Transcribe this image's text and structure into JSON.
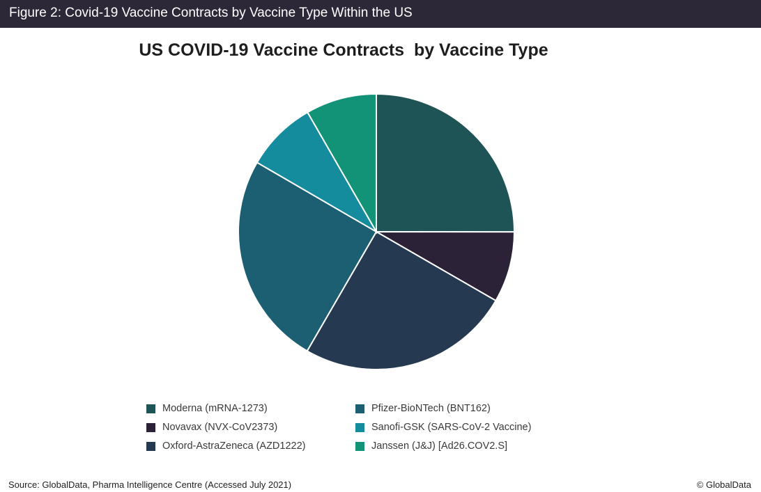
{
  "header": {
    "title": "Figure 2: Covid-19 Vaccine Contracts by Vaccine Type Within the US"
  },
  "footer": {
    "source": "Source: GlobalData, Pharma Intelligence Centre (Accessed July 2021)",
    "copyright": "© GlobalData"
  },
  "chart_data": {
    "type": "pie",
    "title": "US COVID-19 Vaccine Contracts  by Vaccine Type",
    "legend_position": "bottom",
    "slices": [
      {
        "label": "Moderna (mRNA-1273)",
        "value": 25,
        "color": "#1f5457"
      },
      {
        "label": "Novavax (NVX-CoV2373)",
        "value": 8.3,
        "color": "#2b2238"
      },
      {
        "label": "Oxford-AstraZeneca (AZD1222)",
        "value": 25,
        "color": "#253a50"
      },
      {
        "label": "Pfizer-BioNTech (BNT162)",
        "value": 25,
        "color": "#1c5f73"
      },
      {
        "label": "Sanofi-GSK (SARS-CoV-2 Vaccine)",
        "value": 8.3,
        "color": "#158c9e"
      },
      {
        "label": "Janssen (J&J) [Ad26.COV2.S]",
        "value": 8.3,
        "color": "#129276"
      }
    ]
  }
}
